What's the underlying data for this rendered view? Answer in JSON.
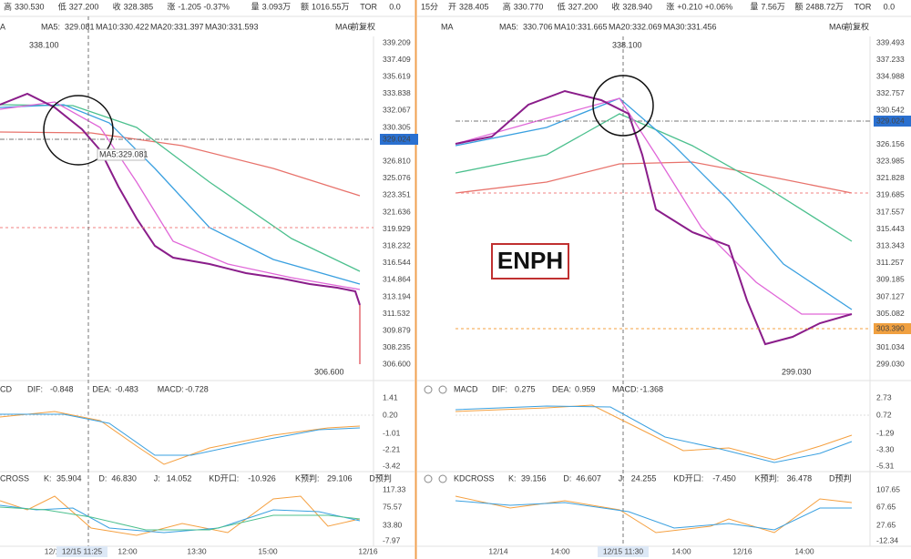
{
  "left": {
    "header": [
      {
        "label": "高",
        "value": "330.530"
      },
      {
        "label": "低",
        "value": "327.200"
      },
      {
        "label": "收",
        "value": "328.385"
      },
      {
        "label": "涨",
        "value": "-1.205 -0.37%"
      },
      {
        "label": "量",
        "value": "3.093万"
      },
      {
        "label": "额",
        "value": "1016.55万"
      },
      {
        "label": "TOR",
        "value": "0.0"
      }
    ],
    "ma_title": "A",
    "ma": [
      {
        "label": "MA5:",
        "value": "329.081"
      },
      {
        "label": "MA10:",
        "value": "330.422"
      },
      {
        "label": "MA20:",
        "value": "331.397"
      },
      {
        "label": "MA30:",
        "value": "331.593"
      }
    ],
    "ma_extra": "MA6",
    "adjust": "前复权",
    "price_axis": [
      "339.209",
      "337.409",
      "335.619",
      "333.838",
      "332.067",
      "330.305",
      "326.810",
      "325.076",
      "323.351",
      "321.636",
      "319.929",
      "318.232",
      "316.544",
      "314.864",
      "313.194",
      "311.532",
      "309.879",
      "308.235",
      "306.600"
    ],
    "price_tag": "329.024",
    "high_note": "338.100",
    "low_note": "306.600",
    "ma_note": "MA5:329.081",
    "macd": {
      "title": "CD",
      "items": [
        {
          "label": "DIF:",
          "value": "-0.848"
        },
        {
          "label": "DEA:",
          "value": "-0.483"
        },
        {
          "label": "MACD:",
          "value": "-0.728"
        }
      ],
      "axis": [
        "1.41",
        "0.20",
        "-1.01",
        "-2.21",
        "-3.42"
      ]
    },
    "kd": {
      "title": "CROSS",
      "items": [
        {
          "label": "K:",
          "value": "35.904"
        },
        {
          "label": "D:",
          "value": "46.830"
        },
        {
          "label": "J:",
          "value": "14.052"
        },
        {
          "label": "KD开口:",
          "value": "-10.926"
        },
        {
          "label": "K预判:",
          "value": "29.106"
        },
        {
          "label": "D预判",
          "value": ""
        }
      ],
      "axis": [
        "117.33",
        "75.57",
        "33.80",
        "-7.97"
      ]
    },
    "x_labels": [
      "12/1",
      "12:00",
      "13:30",
      "15:00",
      "12/16"
    ],
    "x_highlight": "12/15 11:25"
  },
  "right": {
    "period": "15分",
    "header": [
      {
        "label": "开",
        "value": "328.405"
      },
      {
        "label": "高",
        "value": "330.770"
      },
      {
        "label": "低",
        "value": "327.200"
      },
      {
        "label": "收",
        "value": "328.940"
      },
      {
        "label": "涨",
        "value": "+0.210 +0.06%"
      },
      {
        "label": "量",
        "value": "7.56万"
      },
      {
        "label": "额",
        "value": "2488.72万"
      },
      {
        "label": "TOR",
        "value": "0.0"
      }
    ],
    "ma_title": "MA",
    "ma": [
      {
        "label": "MA5:",
        "value": "330.706"
      },
      {
        "label": "MA10:",
        "value": "331.665"
      },
      {
        "label": "MA20:",
        "value": "332.069"
      },
      {
        "label": "MA30:",
        "value": "331.456"
      }
    ],
    "ma_extra": "MA6",
    "adjust": "前复权",
    "price_axis": [
      "339.493",
      "337.233",
      "334.988",
      "332.757",
      "330.542",
      "326.156",
      "323.985",
      "321.828",
      "319.685",
      "317.557",
      "315.443",
      "313.343",
      "311.257",
      "309.185",
      "307.127",
      "305.082",
      "301.034",
      "299.030"
    ],
    "price_tag": "329.024",
    "price_tag2": "303.390",
    "high_note": "338.100",
    "low_note": "299.030",
    "watermark": "ENPH",
    "macd": {
      "title": "MACD",
      "items": [
        {
          "label": "DIF:",
          "value": "0.275"
        },
        {
          "label": "DEA:",
          "value": "0.959"
        },
        {
          "label": "MACD:",
          "value": "-1.368"
        }
      ],
      "axis": [
        "2.73",
        "0.72",
        "-1.29",
        "-3.30",
        "-5.31"
      ]
    },
    "kd": {
      "title": "KDCROSS",
      "items": [
        {
          "label": "K:",
          "value": "39.156"
        },
        {
          "label": "D:",
          "value": "46.607"
        },
        {
          "label": "J:",
          "value": "24.255"
        },
        {
          "label": "KD开口:",
          "value": "-7.450"
        },
        {
          "label": "K预判:",
          "value": "36.478"
        },
        {
          "label": "D预判",
          "value": ""
        }
      ],
      "axis": [
        "107.65",
        "67.65",
        "27.65",
        "-12.34"
      ]
    },
    "x_labels": [
      "12/14",
      "14:00",
      "14:00",
      "12/16",
      "14:00"
    ],
    "x_highlight": "12/15 11:30"
  }
}
